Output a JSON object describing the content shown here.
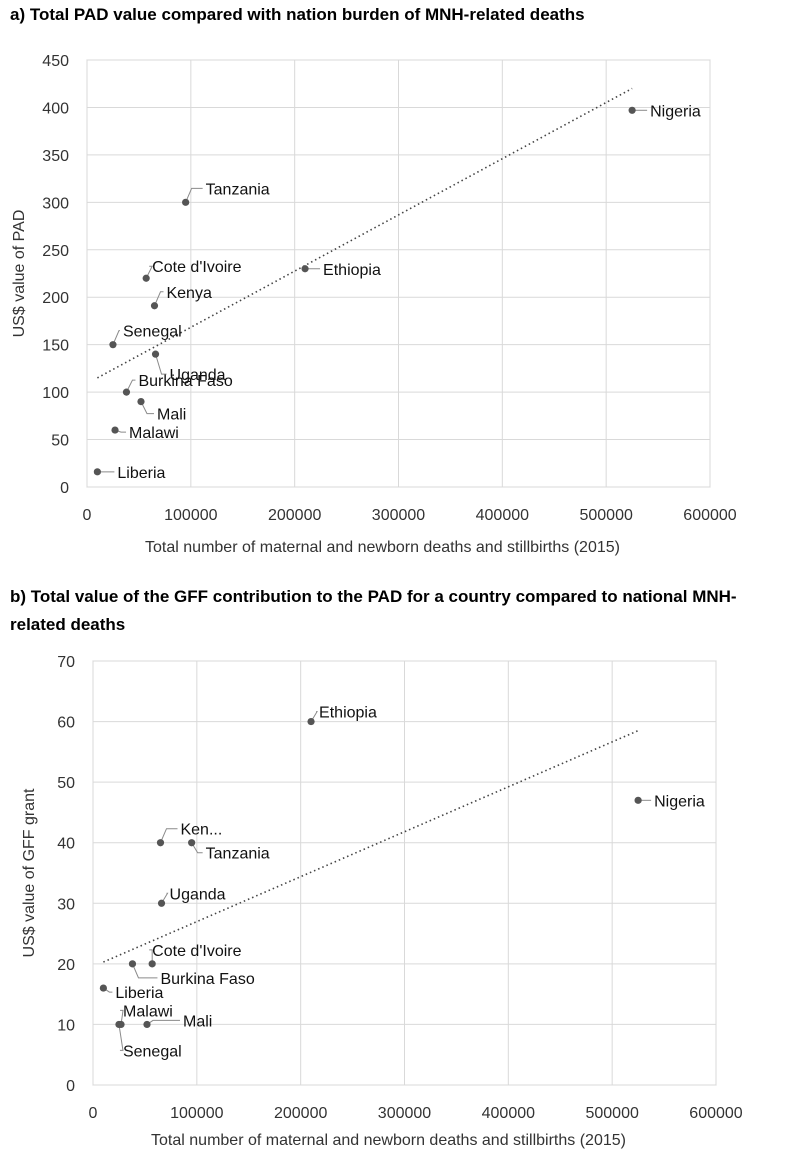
{
  "chart_data": [
    {
      "type": "scatter",
      "title": "a) Total PAD value compared with nation burden of MNH-related deaths",
      "xlabel": "Total number of maternal and newborn deaths and stillbirths (2015)",
      "ylabel": "US$ value of PAD",
      "xlim": [
        0,
        600000
      ],
      "ylim": [
        0,
        450
      ],
      "xticks": [
        0,
        100000,
        200000,
        300000,
        400000,
        500000,
        600000
      ],
      "yticks": [
        0,
        50,
        100,
        150,
        200,
        250,
        300,
        350,
        400,
        450
      ],
      "grid": true,
      "trendline": {
        "style": "dotted",
        "x": [
          10000,
          525000
        ],
        "y": [
          115,
          420
        ]
      },
      "points": [
        {
          "label": "Nigeria",
          "x": 525000,
          "y": 397
        },
        {
          "label": "Tanzania",
          "x": 95000,
          "y": 300
        },
        {
          "label": "Ethiopia",
          "x": 210000,
          "y": 230
        },
        {
          "label": "Cote d'Ivoire",
          "x": 57000,
          "y": 220
        },
        {
          "label": "Kenya",
          "x": 65000,
          "y": 191
        },
        {
          "label": "Senegal",
          "x": 25000,
          "y": 150
        },
        {
          "label": "Uganda",
          "x": 66000,
          "y": 140
        },
        {
          "label": "Burkina Faso",
          "x": 38000,
          "y": 100
        },
        {
          "label": "Mali",
          "x": 52000,
          "y": 90
        },
        {
          "label": "Malawi",
          "x": 27000,
          "y": 60
        },
        {
          "label": "Liberia",
          "x": 10000,
          "y": 16
        }
      ]
    },
    {
      "type": "scatter",
      "title": "b) Total value of the GFF contribution to the PAD for a country compared to national MNH-related deaths",
      "xlabel": "Total number of maternal and newborn deaths and stillbirths (2015)",
      "ylabel": "US$ value of GFF grant",
      "xlim": [
        0,
        600000
      ],
      "ylim": [
        0,
        70
      ],
      "xticks": [
        0,
        100000,
        200000,
        300000,
        400000,
        500000,
        600000
      ],
      "yticks": [
        0,
        10,
        20,
        30,
        40,
        50,
        60,
        70
      ],
      "grid": true,
      "trendline": {
        "style": "dotted",
        "x": [
          10000,
          525000
        ],
        "y": [
          20.3,
          58.5
        ]
      },
      "points": [
        {
          "label": "Ethiopia",
          "x": 210000,
          "y": 60
        },
        {
          "label": "Nigeria",
          "x": 525000,
          "y": 47
        },
        {
          "label": "Ken...",
          "x": 65000,
          "y": 40
        },
        {
          "label": "Tanzania",
          "x": 95000,
          "y": 40
        },
        {
          "label": "Uganda",
          "x": 66000,
          "y": 30
        },
        {
          "label": "Cote d'Ivoire",
          "x": 57000,
          "y": 20
        },
        {
          "label": "Burkina Faso",
          "x": 38000,
          "y": 20
        },
        {
          "label": "Liberia",
          "x": 10000,
          "y": 16
        },
        {
          "label": "Malawi",
          "x": 27000,
          "y": 10
        },
        {
          "label": "Senegal",
          "x": 25000,
          "y": 10
        },
        {
          "label": "Mali",
          "x": 52000,
          "y": 10
        }
      ]
    }
  ]
}
